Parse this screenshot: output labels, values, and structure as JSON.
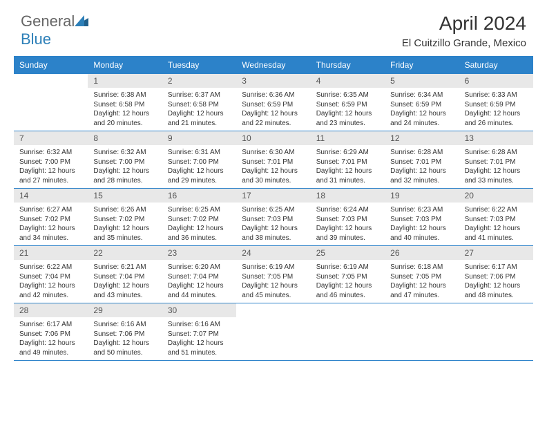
{
  "brand": {
    "text1": "General",
    "text2": "Blue"
  },
  "title": "April 2024",
  "location": "El Cuitzillo Grande, Mexico",
  "days": [
    "Sunday",
    "Monday",
    "Tuesday",
    "Wednesday",
    "Thursday",
    "Friday",
    "Saturday"
  ],
  "colors": {
    "header_bg": "#2c82c9",
    "header_text": "#ffffff",
    "date_bg": "#e8e8e8",
    "border": "#2c82c9",
    "logo_gray": "#666666",
    "logo_blue": "#2c7fb8",
    "text": "#333333"
  },
  "fonts": {
    "title_size": 28,
    "location_size": 15,
    "day_header_size": 12,
    "date_size": 12,
    "content_size": 10
  },
  "weeks": [
    [
      {
        "date": "",
        "sunrise": "",
        "sunset": "",
        "daylight": ""
      },
      {
        "date": "1",
        "sunrise": "Sunrise: 6:38 AM",
        "sunset": "Sunset: 6:58 PM",
        "daylight": "Daylight: 12 hours and 20 minutes."
      },
      {
        "date": "2",
        "sunrise": "Sunrise: 6:37 AM",
        "sunset": "Sunset: 6:58 PM",
        "daylight": "Daylight: 12 hours and 21 minutes."
      },
      {
        "date": "3",
        "sunrise": "Sunrise: 6:36 AM",
        "sunset": "Sunset: 6:59 PM",
        "daylight": "Daylight: 12 hours and 22 minutes."
      },
      {
        "date": "4",
        "sunrise": "Sunrise: 6:35 AM",
        "sunset": "Sunset: 6:59 PM",
        "daylight": "Daylight: 12 hours and 23 minutes."
      },
      {
        "date": "5",
        "sunrise": "Sunrise: 6:34 AM",
        "sunset": "Sunset: 6:59 PM",
        "daylight": "Daylight: 12 hours and 24 minutes."
      },
      {
        "date": "6",
        "sunrise": "Sunrise: 6:33 AM",
        "sunset": "Sunset: 6:59 PM",
        "daylight": "Daylight: 12 hours and 26 minutes."
      }
    ],
    [
      {
        "date": "7",
        "sunrise": "Sunrise: 6:32 AM",
        "sunset": "Sunset: 7:00 PM",
        "daylight": "Daylight: 12 hours and 27 minutes."
      },
      {
        "date": "8",
        "sunrise": "Sunrise: 6:32 AM",
        "sunset": "Sunset: 7:00 PM",
        "daylight": "Daylight: 12 hours and 28 minutes."
      },
      {
        "date": "9",
        "sunrise": "Sunrise: 6:31 AM",
        "sunset": "Sunset: 7:00 PM",
        "daylight": "Daylight: 12 hours and 29 minutes."
      },
      {
        "date": "10",
        "sunrise": "Sunrise: 6:30 AM",
        "sunset": "Sunset: 7:01 PM",
        "daylight": "Daylight: 12 hours and 30 minutes."
      },
      {
        "date": "11",
        "sunrise": "Sunrise: 6:29 AM",
        "sunset": "Sunset: 7:01 PM",
        "daylight": "Daylight: 12 hours and 31 minutes."
      },
      {
        "date": "12",
        "sunrise": "Sunrise: 6:28 AM",
        "sunset": "Sunset: 7:01 PM",
        "daylight": "Daylight: 12 hours and 32 minutes."
      },
      {
        "date": "13",
        "sunrise": "Sunrise: 6:28 AM",
        "sunset": "Sunset: 7:01 PM",
        "daylight": "Daylight: 12 hours and 33 minutes."
      }
    ],
    [
      {
        "date": "14",
        "sunrise": "Sunrise: 6:27 AM",
        "sunset": "Sunset: 7:02 PM",
        "daylight": "Daylight: 12 hours and 34 minutes."
      },
      {
        "date": "15",
        "sunrise": "Sunrise: 6:26 AM",
        "sunset": "Sunset: 7:02 PM",
        "daylight": "Daylight: 12 hours and 35 minutes."
      },
      {
        "date": "16",
        "sunrise": "Sunrise: 6:25 AM",
        "sunset": "Sunset: 7:02 PM",
        "daylight": "Daylight: 12 hours and 36 minutes."
      },
      {
        "date": "17",
        "sunrise": "Sunrise: 6:25 AM",
        "sunset": "Sunset: 7:03 PM",
        "daylight": "Daylight: 12 hours and 38 minutes."
      },
      {
        "date": "18",
        "sunrise": "Sunrise: 6:24 AM",
        "sunset": "Sunset: 7:03 PM",
        "daylight": "Daylight: 12 hours and 39 minutes."
      },
      {
        "date": "19",
        "sunrise": "Sunrise: 6:23 AM",
        "sunset": "Sunset: 7:03 PM",
        "daylight": "Daylight: 12 hours and 40 minutes."
      },
      {
        "date": "20",
        "sunrise": "Sunrise: 6:22 AM",
        "sunset": "Sunset: 7:03 PM",
        "daylight": "Daylight: 12 hours and 41 minutes."
      }
    ],
    [
      {
        "date": "21",
        "sunrise": "Sunrise: 6:22 AM",
        "sunset": "Sunset: 7:04 PM",
        "daylight": "Daylight: 12 hours and 42 minutes."
      },
      {
        "date": "22",
        "sunrise": "Sunrise: 6:21 AM",
        "sunset": "Sunset: 7:04 PM",
        "daylight": "Daylight: 12 hours and 43 minutes."
      },
      {
        "date": "23",
        "sunrise": "Sunrise: 6:20 AM",
        "sunset": "Sunset: 7:04 PM",
        "daylight": "Daylight: 12 hours and 44 minutes."
      },
      {
        "date": "24",
        "sunrise": "Sunrise: 6:19 AM",
        "sunset": "Sunset: 7:05 PM",
        "daylight": "Daylight: 12 hours and 45 minutes."
      },
      {
        "date": "25",
        "sunrise": "Sunrise: 6:19 AM",
        "sunset": "Sunset: 7:05 PM",
        "daylight": "Daylight: 12 hours and 46 minutes."
      },
      {
        "date": "26",
        "sunrise": "Sunrise: 6:18 AM",
        "sunset": "Sunset: 7:05 PM",
        "daylight": "Daylight: 12 hours and 47 minutes."
      },
      {
        "date": "27",
        "sunrise": "Sunrise: 6:17 AM",
        "sunset": "Sunset: 7:06 PM",
        "daylight": "Daylight: 12 hours and 48 minutes."
      }
    ],
    [
      {
        "date": "28",
        "sunrise": "Sunrise: 6:17 AM",
        "sunset": "Sunset: 7:06 PM",
        "daylight": "Daylight: 12 hours and 49 minutes."
      },
      {
        "date": "29",
        "sunrise": "Sunrise: 6:16 AM",
        "sunset": "Sunset: 7:06 PM",
        "daylight": "Daylight: 12 hours and 50 minutes."
      },
      {
        "date": "30",
        "sunrise": "Sunrise: 6:16 AM",
        "sunset": "Sunset: 7:07 PM",
        "daylight": "Daylight: 12 hours and 51 minutes."
      },
      {
        "date": "",
        "sunrise": "",
        "sunset": "",
        "daylight": ""
      },
      {
        "date": "",
        "sunrise": "",
        "sunset": "",
        "daylight": ""
      },
      {
        "date": "",
        "sunrise": "",
        "sunset": "",
        "daylight": ""
      },
      {
        "date": "",
        "sunrise": "",
        "sunset": "",
        "daylight": ""
      }
    ]
  ]
}
